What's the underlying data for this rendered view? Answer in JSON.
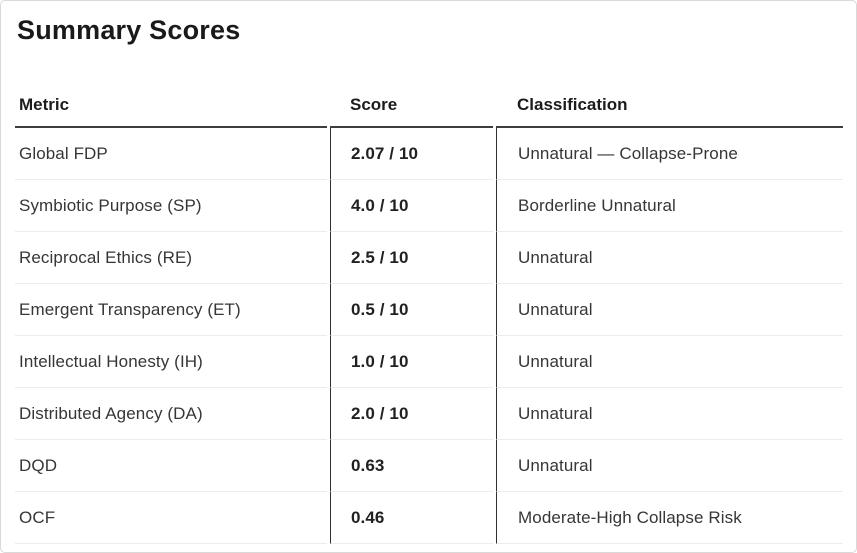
{
  "title": "Summary Scores",
  "table": {
    "columns": [
      "Metric",
      "Score",
      "Classification"
    ],
    "rows": [
      {
        "metric": "Global FDP",
        "score": "2.07 / 10",
        "classification": "Unnatural — Collapse-Prone"
      },
      {
        "metric": "Symbiotic Purpose (SP)",
        "score": "4.0 / 10",
        "classification": "Borderline Unnatural"
      },
      {
        "metric": "Reciprocal Ethics (RE)",
        "score": "2.5 / 10",
        "classification": "Unnatural"
      },
      {
        "metric": "Emergent Transparency (ET)",
        "score": "0.5 / 10",
        "classification": "Unnatural"
      },
      {
        "metric": "Intellectual Honesty (IH)",
        "score": "1.0 / 10",
        "classification": "Unnatural"
      },
      {
        "metric": "Distributed Agency (DA)",
        "score": "2.0 / 10",
        "classification": "Unnatural"
      },
      {
        "metric": "DQD",
        "score": "0.63",
        "classification": "Unnatural"
      },
      {
        "metric": "OCF",
        "score": "0.46",
        "classification": "Moderate-High Collapse Risk"
      }
    ]
  },
  "colors": {
    "card_border": "#d9d9d9",
    "header_underline": "#3d3d3d",
    "column_divider": "#31302c",
    "row_separator": "#ececec",
    "title_text": "#1a1a1a",
    "body_text": "#363636",
    "score_text": "#212121",
    "background": "#ffffff"
  }
}
